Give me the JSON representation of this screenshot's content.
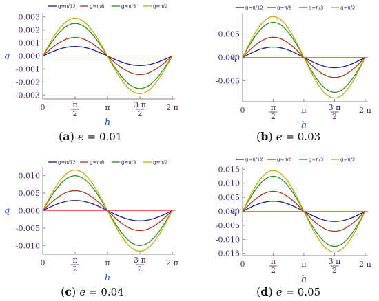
{
  "chart_data": [
    {
      "type": "line",
      "panel_label": "a",
      "caption_var": "e",
      "caption_eq": "= 0.01",
      "xlabel": "h",
      "ylabel": "q",
      "xlim": [
        0,
        6.2832
      ],
      "ylim": [
        -0.0033,
        0.0033
      ],
      "x_ticks": [
        {
          "v": 0,
          "num": "0",
          "den": ""
        },
        {
          "v": 1.5708,
          "num": "π",
          "den": "2"
        },
        {
          "v": 3.1416,
          "num": "π",
          "den": ""
        },
        {
          "v": 4.7124,
          "num": "3 π",
          "den": "2"
        },
        {
          "v": 6.2832,
          "num": "2 π",
          "den": ""
        }
      ],
      "y_ticks": [
        {
          "v": 0.003,
          "label": "0.003"
        },
        {
          "v": 0.002,
          "label": "0.002"
        },
        {
          "v": 0.001,
          "label": "0.001"
        },
        {
          "v": 0.0,
          "label": "0.000"
        },
        {
          "v": -0.001,
          "label": "-0.001"
        },
        {
          "v": -0.002,
          "label": "-0.002"
        },
        {
          "v": -0.003,
          "label": "-0.003"
        }
      ],
      "series": [
        {
          "name": "g=π/12",
          "color": "#1c1a8f",
          "amplitude": 0.00073
        },
        {
          "name": "g=π/6",
          "color": "#a4341b",
          "amplitude": 0.00142
        },
        {
          "name": "g=π/3",
          "color": "#2e8b22",
          "amplitude": 0.0025
        },
        {
          "name": "g=π/2",
          "color": "#c8a812",
          "amplitude": 0.0029
        }
      ]
    },
    {
      "type": "line",
      "panel_label": "b",
      "caption_var": "e",
      "caption_eq": "= 0.03",
      "xlabel": "h",
      "ylabel": "q",
      "xlim": [
        0,
        6.2832
      ],
      "ylim": [
        -0.0095,
        0.0095
      ],
      "x_ticks": [
        {
          "v": 0,
          "num": "0",
          "den": ""
        },
        {
          "v": 1.5708,
          "num": "π",
          "den": "2"
        },
        {
          "v": 3.1416,
          "num": "π",
          "den": ""
        },
        {
          "v": 4.7124,
          "num": "3 π",
          "den": "2"
        },
        {
          "v": 6.2832,
          "num": "2 π",
          "den": ""
        }
      ],
      "y_ticks": [
        {
          "v": 0.005,
          "label": "0.005"
        },
        {
          "v": 0.0,
          "label": "0.000"
        },
        {
          "v": -0.005,
          "label": "-0.005"
        }
      ],
      "series": [
        {
          "name": "g=π/12",
          "color": "#1c1a8f",
          "amplitude": 0.0022
        },
        {
          "name": "g=π/6",
          "color": "#a4341b",
          "amplitude": 0.0043
        },
        {
          "name": "g=π/3",
          "color": "#2e8b22",
          "amplitude": 0.0075
        },
        {
          "name": "g=π/2",
          "color": "#c8a812",
          "amplitude": 0.0087
        }
      ]
    },
    {
      "type": "line",
      "panel_label": "c",
      "caption_var": "e",
      "caption_eq": "= 0.04",
      "xlabel": "h",
      "ylabel": "q",
      "xlim": [
        0,
        6.2832
      ],
      "ylim": [
        -0.0125,
        0.0125
      ],
      "x_ticks": [
        {
          "v": 0,
          "num": "0",
          "den": ""
        },
        {
          "v": 1.5708,
          "num": "π",
          "den": "2"
        },
        {
          "v": 3.1416,
          "num": "π",
          "den": ""
        },
        {
          "v": 4.7124,
          "num": "3 π",
          "den": "2"
        },
        {
          "v": 6.2832,
          "num": "2 π",
          "den": ""
        }
      ],
      "y_ticks": [
        {
          "v": 0.01,
          "label": "0.010"
        },
        {
          "v": 0.005,
          "label": "0.005"
        },
        {
          "v": 0.0,
          "label": "0.000"
        },
        {
          "v": -0.005,
          "label": "-0.005"
        },
        {
          "v": -0.01,
          "label": "-0.010"
        }
      ],
      "series": [
        {
          "name": "g=π/12",
          "color": "#1c1a8f",
          "amplitude": 0.0029
        },
        {
          "name": "g=π/6",
          "color": "#a4341b",
          "amplitude": 0.0057
        },
        {
          "name": "g=π/3",
          "color": "#2e8b22",
          "amplitude": 0.01
        },
        {
          "name": "g=π/2",
          "color": "#c8a812",
          "amplitude": 0.0116
        }
      ]
    },
    {
      "type": "line",
      "panel_label": "d",
      "caption_var": "e",
      "caption_eq": "= 0.05",
      "xlabel": "h",
      "ylabel": "q",
      "xlim": [
        0,
        6.2832
      ],
      "ylim": [
        -0.0158,
        0.0158
      ],
      "x_ticks": [
        {
          "v": 0,
          "num": "0",
          "den": ""
        },
        {
          "v": 1.5708,
          "num": "π",
          "den": "2"
        },
        {
          "v": 3.1416,
          "num": "π",
          "den": ""
        },
        {
          "v": 4.7124,
          "num": "3 π",
          "den": "2"
        },
        {
          "v": 6.2832,
          "num": "2 π",
          "den": ""
        }
      ],
      "y_ticks": [
        {
          "v": 0.015,
          "label": "0.015"
        },
        {
          "v": 0.01,
          "label": "0.010"
        },
        {
          "v": 0.005,
          "label": "0.005"
        },
        {
          "v": 0.0,
          "label": "0.000"
        },
        {
          "v": -0.005,
          "label": "-0.005"
        },
        {
          "v": -0.01,
          "label": "-0.010"
        },
        {
          "v": -0.015,
          "label": "-0.015"
        }
      ],
      "series": [
        {
          "name": "g=π/12",
          "color": "#1c1a8f",
          "amplitude": 0.0036
        },
        {
          "name": "g=π/6",
          "color": "#a4341b",
          "amplitude": 0.0071
        },
        {
          "name": "g=π/3",
          "color": "#2e8b22",
          "amplitude": 0.0125
        },
        {
          "name": "g=π/2",
          "color": "#c8a812",
          "amplitude": 0.0145
        }
      ]
    }
  ]
}
